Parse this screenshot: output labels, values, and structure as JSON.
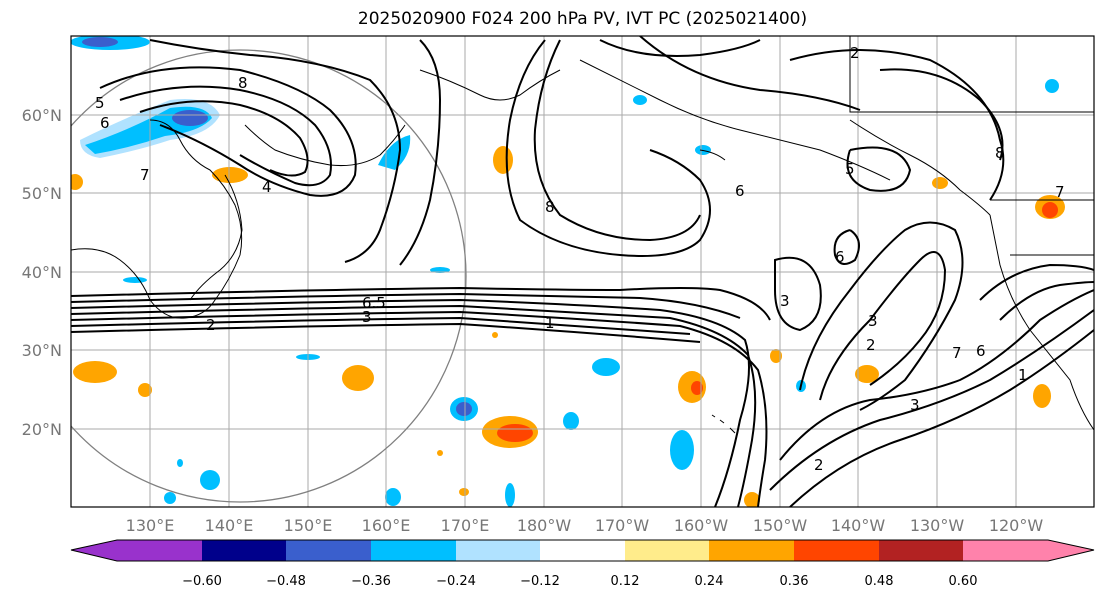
{
  "title": "2025020900 F024 200 hPa PV, IVT PC (2025021400)",
  "map": {
    "lon_labels": [
      "130°E",
      "140°E",
      "150°E",
      "160°E",
      "170°E",
      "180°W",
      "170°W",
      "160°W",
      "150°W",
      "140°W",
      "130°W",
      "120°W"
    ],
    "lat_labels": [
      "60°N",
      "50°N",
      "40°N",
      "30°N",
      "20°N"
    ],
    "contour_labels": [
      "8",
      "7",
      "6",
      "5",
      "4",
      "3",
      "2",
      "1",
      "6.5",
      "8",
      "6",
      "5",
      "3",
      "3",
      "2",
      "7",
      "6",
      "1",
      "8",
      "2",
      "3",
      "7",
      "2",
      "6"
    ],
    "colors": {
      "neg_060": "#9932CC",
      "neg_048": "#00008B",
      "neg_036": "#3A5FCD",
      "neg_024": "#00BFFF",
      "neg_012": "#B0E2FF",
      "zero": "#FFFFFF",
      "pos_012": "#FFEC8B",
      "pos_024": "#FFA500",
      "pos_036": "#FF4500",
      "pos_048": "#B22222",
      "pos_060": "#FF82AB"
    }
  },
  "colorbar": {
    "ticks": [
      "−0.60",
      "−0.48",
      "−0.36",
      "−0.24",
      "−0.12",
      "0.12",
      "0.24",
      "0.36",
      "0.48",
      "0.60"
    ]
  }
}
